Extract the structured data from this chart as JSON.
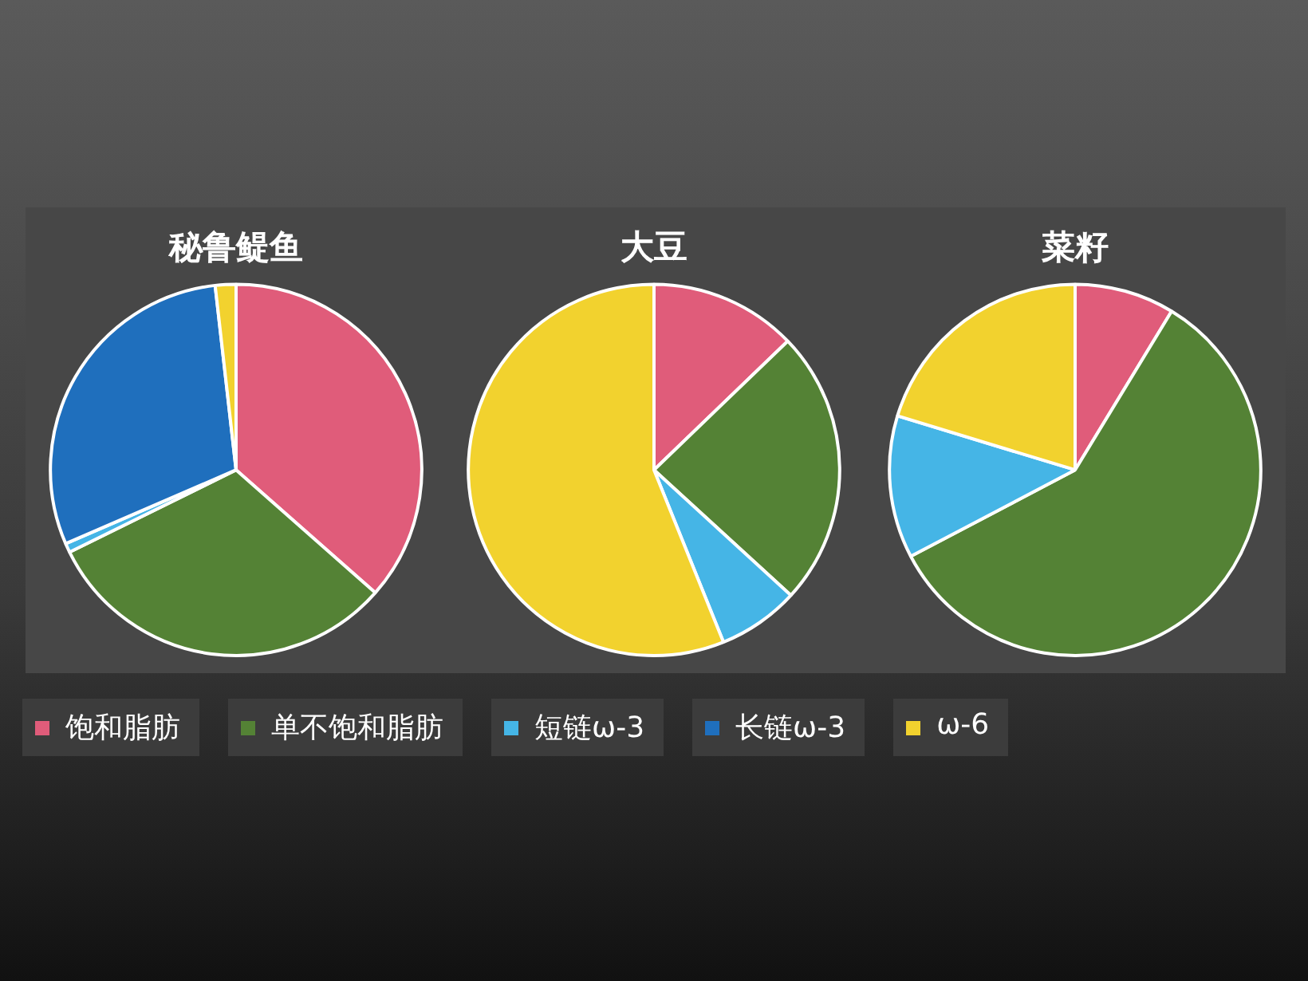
{
  "chart_data": {
    "type": "pie",
    "categories": [
      "饱和脂肪",
      "单不饱和脂肪",
      "短链ω-3",
      "长链ω-3",
      "ω-6"
    ],
    "colors": [
      "#e05c7a",
      "#548235",
      "#45b5e6",
      "#1f6fbd",
      "#f2d22e"
    ],
    "legend": "bottom",
    "series": [
      {
        "name": "秘鲁鳀鱼",
        "values": [
          36.5,
          31.2,
          0.8,
          29.7,
          1.8
        ]
      },
      {
        "name": "大豆",
        "values": [
          12.8,
          24.0,
          7.1,
          0,
          56.1
        ]
      },
      {
        "name": "菜籽",
        "values": [
          8.7,
          58.6,
          12.4,
          0,
          20.3
        ]
      }
    ]
  }
}
